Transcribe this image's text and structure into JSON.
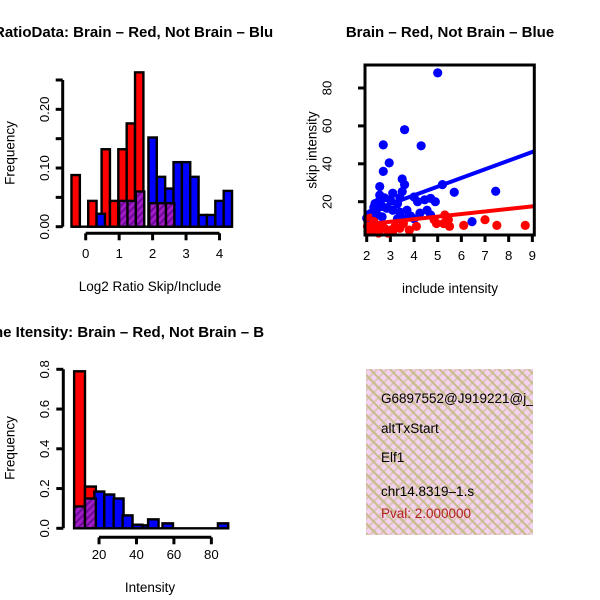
{
  "chart_data": [
    {
      "id": "log2ratio-hist",
      "type": "bar",
      "title": "RatioData: Brain – Red, Not Brain – Blu",
      "xlabel": "Log2 Ratio Skip/Include",
      "ylabel": "Frequency",
      "xlim": [
        -0.7,
        4.4
      ],
      "ylim": [
        0,
        0.27
      ],
      "x_ticks": [
        0,
        1,
        2,
        3,
        4
      ],
      "x_tick_labels": [
        "0",
        "1",
        "2",
        "3",
        "4"
      ],
      "y_ticks": [
        0,
        0.05,
        0.1,
        0.15,
        0.2,
        0.25
      ],
      "y_tick_labels": [
        "0.00",
        null,
        "0.10",
        null,
        "0.20",
        null
      ],
      "grid": false,
      "legend": "none",
      "baseline": [
        -0.425,
        4.375
      ],
      "series": [
        {
          "name": "Brain",
          "color": "#FF0000",
          "bars": [
            [
              -0.425,
              -0.175,
              0.088
            ],
            [
              0.075,
              0.325,
              0.044
            ],
            [
              0.475,
              0.725,
              0.132
            ],
            [
              0.725,
              0.975,
              0.044
            ],
            [
              0.975,
              1.225,
              0.132
            ],
            [
              1.225,
              1.475,
              0.176
            ],
            [
              1.475,
              1.725,
              0.263
            ]
          ]
        },
        {
          "name": "Not Brain",
          "color": "#0000FF",
          "bars": [
            [
              0.325,
              0.575,
              0.022
            ],
            [
              1.875,
              2.125,
              0.152
            ],
            [
              2.125,
              2.375,
              0.085
            ],
            [
              2.375,
              2.625,
              0.065
            ],
            [
              2.625,
              2.875,
              0.11
            ],
            [
              2.875,
              3.125,
              0.11
            ],
            [
              3.125,
              3.375,
              0.085
            ],
            [
              3.375,
              3.625,
              0.02
            ],
            [
              3.625,
              3.875,
              0.02
            ],
            [
              3.875,
              4.125,
              0.044
            ],
            [
              4.125,
              4.375,
              0.061
            ]
          ]
        },
        {
          "name": "Overlap",
          "color": "purple-hatch",
          "bars": [
            [
              1.0,
              1.25,
              0.044
            ],
            [
              1.25,
              1.5,
              0.044
            ],
            [
              1.5,
              1.75,
              0.06
            ],
            [
              1.9,
              2.15,
              0.04
            ],
            [
              2.15,
              2.4,
              0.04
            ],
            [
              2.4,
              2.65,
              0.04
            ]
          ]
        }
      ]
    },
    {
      "id": "intensity-scatter",
      "type": "scatter",
      "title": "Brain – Red, Not Brain – Blue",
      "xlabel": "include intensity",
      "ylabel": "skip intensity",
      "xlim": [
        1.93,
        9.08
      ],
      "ylim": [
        2.5,
        92
      ],
      "x_ticks": [
        2,
        3,
        4,
        5,
        6,
        7,
        8,
        9
      ],
      "y_ticks": [
        20,
        40,
        60,
        80
      ],
      "grid": false,
      "legend": "none",
      "series": [
        {
          "name": "Not Brain",
          "color": "#0000FF",
          "points": [
            [
              5.0,
              88
            ],
            [
              3.6,
              58
            ],
            [
              2.7,
              50
            ],
            [
              4.3,
              49.5
            ],
            [
              2.95,
              40.5
            ],
            [
              2.7,
              36
            ],
            [
              3.5,
              32
            ],
            [
              3.6,
              29
            ],
            [
              2.55,
              28
            ],
            [
              5.2,
              29
            ],
            [
              5.7,
              25
            ],
            [
              7.45,
              25.5
            ],
            [
              3.5,
              25.3
            ],
            [
              3.1,
              24.5
            ],
            [
              2.55,
              23.5
            ],
            [
              2.75,
              22
            ],
            [
              3.0,
              21
            ],
            [
              2.5,
              20
            ],
            [
              2.35,
              19
            ],
            [
              3.4,
              22
            ],
            [
              3.3,
              19
            ],
            [
              4.0,
              22.5
            ],
            [
              4.15,
              20
            ],
            [
              4.45,
              21
            ],
            [
              4.7,
              21.8
            ],
            [
              4.9,
              20
            ],
            [
              2.65,
              17.5
            ],
            [
              2.85,
              16.5
            ],
            [
              2.4,
              15.5
            ],
            [
              3.1,
              15.5
            ],
            [
              3.4,
              14.5
            ],
            [
              3.7,
              15.5
            ],
            [
              2.2,
              14
            ],
            [
              2.15,
              12
            ],
            [
              2.65,
              12
            ],
            [
              3.3,
              11
            ],
            [
              3.6,
              11
            ],
            [
              4.0,
              11
            ],
            [
              4.25,
              14
            ],
            [
              4.7,
              13
            ],
            [
              2.0,
              11.3
            ],
            [
              6.45,
              9.5
            ],
            [
              4.55,
              15.5
            ],
            [
              2.3,
              17
            ],
            [
              2.45,
              13
            ],
            [
              3.85,
              12.5
            ]
          ],
          "fit_line": [
            [
              1.95,
              14.0
            ],
            [
              9.05,
              46.5
            ]
          ]
        },
        {
          "name": "Brain",
          "color": "#FF0000",
          "points": [
            [
              2.03,
              7
            ],
            [
              2.2,
              6
            ],
            [
              2.4,
              5
            ],
            [
              2.55,
              7
            ],
            [
              2.75,
              6
            ],
            [
              3.0,
              5
            ],
            [
              3.2,
              7
            ],
            [
              3.4,
              6
            ],
            [
              2.3,
              9.5
            ],
            [
              3.55,
              8.5
            ],
            [
              3.8,
              5
            ],
            [
              2.1,
              4
            ],
            [
              2.5,
              3.5
            ],
            [
              2.9,
              3.5
            ],
            [
              3.1,
              4.5
            ],
            [
              2.05,
              12
            ],
            [
              4.1,
              7
            ],
            [
              4.85,
              10.5
            ],
            [
              4.95,
              8.5
            ],
            [
              5.3,
              13
            ],
            [
              5.25,
              8.5
            ],
            [
              5.45,
              10.5
            ],
            [
              5.5,
              7
            ],
            [
              6.1,
              7.5
            ],
            [
              7.0,
              10.5
            ],
            [
              7.5,
              7.5
            ],
            [
              8.7,
              7.5
            ]
          ],
          "fit_line": [
            [
              1.95,
              8.0
            ],
            [
              9.05,
              17.6
            ]
          ]
        }
      ]
    },
    {
      "id": "gene-intensity-hist",
      "type": "bar",
      "title": "ne Itensity: Brain – Red, Not Brain – B",
      "xlabel": "Intensity",
      "ylabel": "Frequency",
      "xlim": [
        4,
        92
      ],
      "ylim": [
        0,
        0.8
      ],
      "x_ticks": [
        20,
        40,
        60,
        80
      ],
      "x_tick_labels": [
        "20",
        "40",
        "60",
        "80"
      ],
      "y_ticks": [
        0,
        0.2,
        0.4,
        0.6,
        0.8
      ],
      "y_tick_labels": [
        "0.0",
        "0.2",
        "0.4",
        "0.6",
        "0.8"
      ],
      "grid": false,
      "legend": "none",
      "baseline": [
        6.7,
        89.3
      ],
      "series": [
        {
          "name": "Brain",
          "color": "#FF0000",
          "bars": [
            [
              6.7,
              12.5,
              0.79
            ],
            [
              12.5,
              18.3,
              0.21
            ]
          ]
        },
        {
          "name": "Not Brain",
          "color": "#0000FF",
          "bars": [
            [
              17.5,
              22.8,
              0.185
            ],
            [
              22.8,
              28.1,
              0.17
            ],
            [
              27.8,
              33.1,
              0.15
            ],
            [
              32.6,
              37.9,
              0.065
            ],
            [
              37.9,
              43.2,
              0.018
            ],
            [
              43.2,
              46.2,
              0.015
            ],
            [
              46.2,
              51.8,
              0.045
            ],
            [
              53.9,
              59.5,
              0.025
            ],
            [
              83.5,
              89.0,
              0.025
            ]
          ]
        },
        {
          "name": "Overlap",
          "color": "purple-hatch",
          "bars": [
            [
              6.7,
              12.5,
              0.11
            ],
            [
              12.5,
              18.3,
              0.15
            ]
          ]
        }
      ]
    }
  ],
  "info_box": {
    "lines": [
      "G6897552@J919221@j_",
      "altTxStart",
      "Elf1",
      "chr14.8319–1.s"
    ],
    "pval": "Pval: 2.000000",
    "pval_color": "#B22222",
    "bg_color": "#f5d2f0",
    "pattern_color": "#c6bc88"
  },
  "colors": {
    "brain": "#FF0000",
    "not_brain": "#0000FF",
    "overlap_fill": "#A21CC8",
    "overlap_hatch": "#70099A",
    "axis": "#000000"
  }
}
